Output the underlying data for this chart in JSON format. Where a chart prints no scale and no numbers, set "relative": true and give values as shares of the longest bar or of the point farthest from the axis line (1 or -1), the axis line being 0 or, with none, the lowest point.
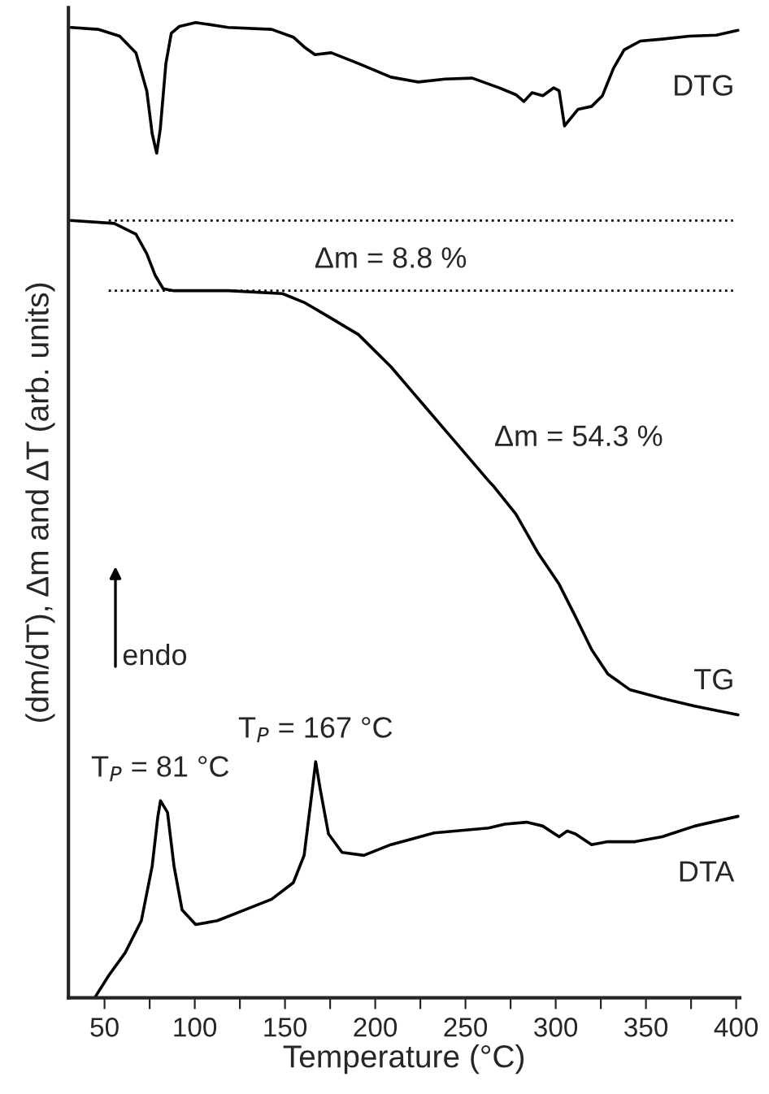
{
  "chart_data": {
    "type": "line",
    "relative": true,
    "xlabel": "Temperature (°C)",
    "ylabel": "(dm/dT), Δm and ΔT (arb. units)",
    "xlim": [
      30,
      402
    ],
    "xticks": [
      50,
      {
        "value": 75,
        "label": null
      },
      100,
      {
        "value": 125,
        "label": null
      },
      150,
      {
        "value": 175,
        "label": null
      },
      200,
      {
        "value": 225,
        "label": null
      },
      250,
      {
        "value": 275,
        "label": null
      },
      300,
      {
        "value": 325,
        "label": null
      },
      350,
      {
        "value": 375,
        "label": null
      },
      400
    ],
    "series": [
      {
        "name": "DTG",
        "color": "#000000",
        "x": [
          31.4,
          46.4,
          58.4,
          67.4,
          73.4,
          76.4,
          78.9,
          80.9,
          84,
          87,
          91.5,
          100.5,
          118.5,
          142.6,
          154.6,
          160.6,
          166.6,
          175.6,
          190.7,
          208.7,
          223.8,
          238.8,
          253.8,
          268.8,
          277.9,
          282.4,
          286.9,
          292.9,
          298.9,
          301.9,
          304.9,
          312.4,
          319.9,
          325.9,
          332,
          337.9,
          346.9,
          359,
          374,
          389,
          401
        ],
        "values": [
          0.995,
          0.993,
          0.986,
          0.969,
          0.93,
          0.886,
          0.866,
          0.891,
          0.958,
          0.989,
          0.996,
          1,
          0.995,
          0.993,
          0.985,
          0.975,
          0.967,
          0.969,
          0.958,
          0.944,
          0.939,
          0.942,
          0.943,
          0.933,
          0.926,
          0.919,
          0.928,
          0.925,
          0.933,
          0.93,
          0.894,
          0.911,
          0.914,
          0.925,
          0.953,
          0.972,
          0.981,
          0.983,
          0.986,
          0.987,
          0.992
        ]
      },
      {
        "name": "TG",
        "color": "#000000",
        "x": [
          31.4,
          55.4,
          67.4,
          73.4,
          78,
          82.5,
          88.5,
          118.5,
          148.6,
          160.6,
          172.6,
          190.7,
          208.7,
          226.7,
          244.8,
          262.8,
          265.8,
          277.9,
          289.9,
          301.9,
          310.9,
          319.9,
          328.9,
          341,
          359,
          377,
          401
        ],
        "values": [
          0.797,
          0.794,
          0.783,
          0.763,
          0.741,
          0.727,
          0.725,
          0.725,
          0.722,
          0.713,
          0.7,
          0.68,
          0.647,
          0.608,
          0.569,
          0.53,
          0.524,
          0.496,
          0.457,
          0.424,
          0.391,
          0.357,
          0.332,
          0.316,
          0.307,
          0.299,
          0.29
        ]
      },
      {
        "name": "DTA",
        "color": "#000000",
        "x": [
          44.9,
          52.4,
          61.4,
          70.4,
          76.4,
          79.5,
          81,
          84.9,
          88.5,
          93,
          100.5,
          112.5,
          127.5,
          142.6,
          154.6,
          160.6,
          165.1,
          167,
          169.6,
          174.1,
          181.6,
          193.7,
          208.7,
          232.7,
          262.8,
          271.8,
          283.8,
          292.9,
          301.9,
          306.4,
          310.9,
          319.9,
          328.9,
          344,
          359,
          377,
          401
        ],
        "values": [
          0.001,
          0.023,
          0.046,
          0.079,
          0.135,
          0.185,
          0.202,
          0.19,
          0.135,
          0.09,
          0.075,
          0.079,
          0.09,
          0.101,
          0.118,
          0.146,
          0.213,
          0.242,
          0.213,
          0.168,
          0.149,
          0.146,
          0.157,
          0.169,
          0.174,
          0.178,
          0.18,
          0.176,
          0.165,
          0.171,
          0.168,
          0.157,
          0.16,
          0.16,
          0.165,
          0.176,
          0.186
        ]
      }
    ],
    "ref_lines": [
      {
        "axis": "y",
        "value": 0.797,
        "color": "#000000",
        "line_style": "dotted"
      },
      {
        "axis": "y",
        "value": 0.725,
        "color": "#000000",
        "line_style": "dotted"
      }
    ],
    "annotations": [
      "Δm = 8.8 %",
      "Δm = 54.3 %",
      {
        "text": "T$_{P}$ = 81 °C",
        "x": 81,
        "y": 0.202
      },
      {
        "text": "T$_{P}$ = 167 °C",
        "x": 167,
        "y": 0.242
      },
      "endo"
    ],
    "marker": "none",
    "line_style": "solid",
    "grid": false,
    "legend": false
  }
}
